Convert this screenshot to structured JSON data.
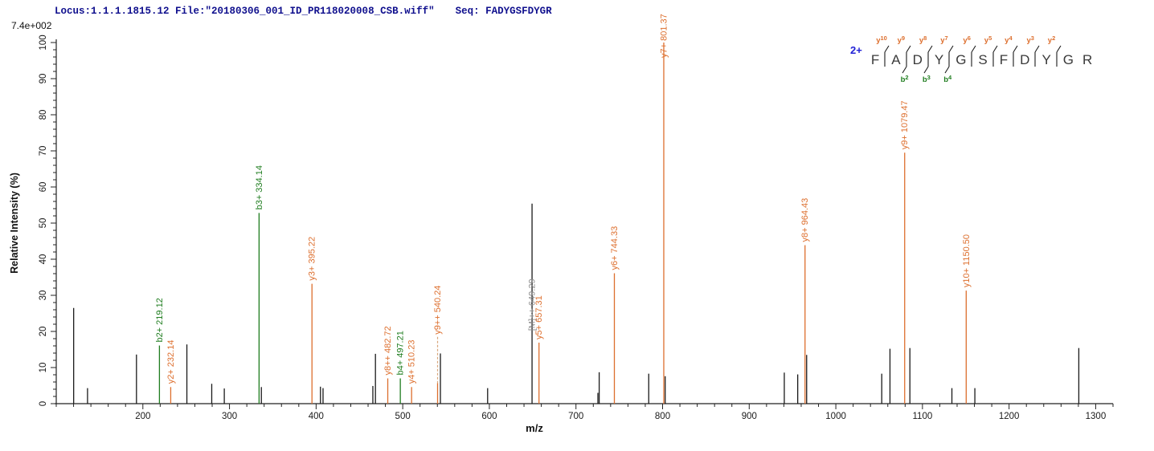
{
  "header": {
    "locus_file": "Locus:1.1.1.1815.12 File:\"20180306_001_ID_PR118020008_CSB.wiff\"",
    "seq_label": "Seq: FADYGSFDYGR",
    "max_intensity": "7.4e+002"
  },
  "peptide": {
    "charge": "2+",
    "residues": [
      "F",
      "A",
      "D",
      "Y",
      "G",
      "S",
      "F",
      "D",
      "Y",
      "G",
      "R"
    ],
    "boundaries": [
      {
        "y": "y10"
      },
      {
        "y": "y9",
        "b": "b2"
      },
      {
        "y": "y8",
        "b": "b3"
      },
      {
        "y": "y7",
        "b": "b4"
      },
      {
        "y": "y6"
      },
      {
        "y": "y5"
      },
      {
        "y": "y4"
      },
      {
        "y": "y3"
      },
      {
        "y": "y2"
      },
      {}
    ]
  },
  "chart_data": {
    "type": "bar",
    "subtype": "mass-spectrum",
    "title": "",
    "xlabel": "m/z",
    "ylabel": "Relative Intensity (%)",
    "xlim": [
      100,
      1320
    ],
    "ylim": [
      0,
      100
    ],
    "x_major_ticks": [
      200,
      300,
      400,
      500,
      600,
      700,
      800,
      900,
      1000,
      1100,
      1200,
      1300
    ],
    "x_minor_step": 20,
    "y_major_step": 10,
    "y_minor_step": 2,
    "grid": false,
    "legend": "none",
    "peaks": [
      {
        "mz": 120.1,
        "intensity": 26.5,
        "series": "unassigned"
      },
      {
        "mz": 136.1,
        "intensity": 4.3,
        "series": "unassigned"
      },
      {
        "mz": 192.6,
        "intensity": 13.6,
        "series": "unassigned"
      },
      {
        "mz": 219.12,
        "intensity": 16.1,
        "series": "b",
        "label": "b2+ 219.12"
      },
      {
        "mz": 232.14,
        "intensity": 4.6,
        "series": "y",
        "label": "y2+ 232.14"
      },
      {
        "mz": 250.8,
        "intensity": 16.4,
        "series": "unassigned"
      },
      {
        "mz": 279.5,
        "intensity": 5.5,
        "series": "unassigned"
      },
      {
        "mz": 294.0,
        "intensity": 4.2,
        "series": "unassigned"
      },
      {
        "mz": 334.14,
        "intensity": 52.8,
        "series": "b",
        "label": "b3+ 334.14"
      },
      {
        "mz": 336.8,
        "intensity": 4.6,
        "series": "unassigned"
      },
      {
        "mz": 395.22,
        "intensity": 33.2,
        "series": "y",
        "label": "y3+ 395.22"
      },
      {
        "mz": 405.0,
        "intensity": 4.7,
        "series": "unassigned"
      },
      {
        "mz": 408.0,
        "intensity": 4.3,
        "series": "unassigned"
      },
      {
        "mz": 465.5,
        "intensity": 4.9,
        "series": "unassigned"
      },
      {
        "mz": 468.5,
        "intensity": 13.8,
        "series": "unassigned"
      },
      {
        "mz": 482.72,
        "intensity": 7.0,
        "series": "y",
        "label": "y8++ 482.72"
      },
      {
        "mz": 497.21,
        "intensity": 7.0,
        "series": "b",
        "label": "b4+ 497.21"
      },
      {
        "mz": 510.23,
        "intensity": 4.6,
        "series": "y",
        "label": "y4+ 510.23"
      },
      {
        "mz": 540.24,
        "intensity": 5.7,
        "series": "y",
        "label": "y9++ 540.24",
        "label_from_pct": 18.5,
        "connector": "dashed"
      },
      {
        "mz": 543.5,
        "intensity": 13.9,
        "series": "unassigned"
      },
      {
        "mz": 598.0,
        "intensity": 4.3,
        "series": "unassigned"
      },
      {
        "mz": 649.29,
        "intensity": 55.4,
        "series": "precursor",
        "label": "[M]++ 649.29",
        "label_from_pct": 19.5
      },
      {
        "mz": 657.31,
        "intensity": 16.9,
        "series": "y",
        "label": "y5+ 657.31"
      },
      {
        "mz": 725.3,
        "intensity": 3.0,
        "series": "unassigned"
      },
      {
        "mz": 726.8,
        "intensity": 8.7,
        "series": "unassigned"
      },
      {
        "mz": 744.33,
        "intensity": 36.1,
        "series": "y",
        "label": "y6+ 744.33"
      },
      {
        "mz": 784.0,
        "intensity": 8.3,
        "series": "unassigned"
      },
      {
        "mz": 801.37,
        "intensity": 100,
        "series": "y",
        "label": "y7+ 801.37"
      },
      {
        "mz": 803.0,
        "intensity": 7.6,
        "series": "unassigned"
      },
      {
        "mz": 940.5,
        "intensity": 8.6,
        "series": "unassigned"
      },
      {
        "mz": 956.0,
        "intensity": 8.1,
        "series": "unassigned"
      },
      {
        "mz": 964.43,
        "intensity": 43.9,
        "series": "y",
        "label": "y8+ 964.43"
      },
      {
        "mz": 966.3,
        "intensity": 13.5,
        "series": "unassigned"
      },
      {
        "mz": 1053.0,
        "intensity": 8.3,
        "series": "unassigned"
      },
      {
        "mz": 1062.5,
        "intensity": 15.2,
        "series": "unassigned"
      },
      {
        "mz": 1079.47,
        "intensity": 69.5,
        "series": "y",
        "label": "y9+ 1079.47"
      },
      {
        "mz": 1085.5,
        "intensity": 15.4,
        "series": "unassigned"
      },
      {
        "mz": 1134.0,
        "intensity": 4.3,
        "series": "unassigned"
      },
      {
        "mz": 1150.5,
        "intensity": 31.3,
        "series": "y",
        "label": "y10+ 1150.50"
      },
      {
        "mz": 1160.5,
        "intensity": 4.3,
        "series": "unassigned"
      },
      {
        "mz": 1280.5,
        "intensity": 15.4,
        "series": "unassigned"
      }
    ]
  },
  "colors": {
    "y_ion": "#DD6F2E",
    "b_ion": "#1F7D1F",
    "precursor_line": "#1a1a1a",
    "precursor_label": "#8E8E8E",
    "unassigned_peak": "#1a1a1a",
    "axis": "#222222",
    "header_text": "#10108E",
    "charge_text": "#2121D6",
    "residue_text": "#3a3a3a",
    "connector_dash": "#D9A77C"
  }
}
